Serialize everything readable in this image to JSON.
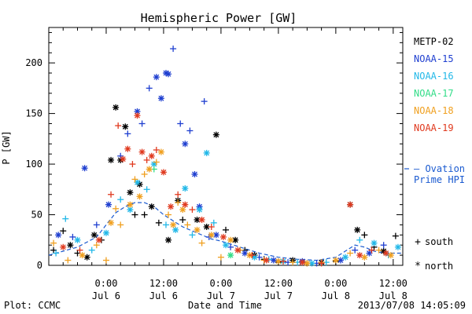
{
  "chart_data": {
    "type": "scatter",
    "title": "Hemispheric Power [GW]",
    "xlabel": "Date and Time",
    "ylabel": "P [GW]",
    "ylim": [
      0,
      235
    ],
    "xlim": [
      "2013-07-05 12:00",
      "2013-07-08 14:00"
    ],
    "yticks": [
      0,
      50,
      100,
      150,
      200
    ],
    "xticks": [
      {
        "time": "2013-07-06 00:00",
        "top": "0:00",
        "bottom": "Jul 6"
      },
      {
        "time": "2013-07-06 12:00",
        "top": "12:00",
        "bottom": "Jul 6"
      },
      {
        "time": "2013-07-07 00:00",
        "top": "0:00",
        "bottom": "Jul 7"
      },
      {
        "time": "2013-07-07 12:00",
        "top": "12:00",
        "bottom": "Jul 7"
      },
      {
        "time": "2013-07-08 00:00",
        "top": "0:00",
        "bottom": "Jul 8"
      },
      {
        "time": "2013-07-08 12:00",
        "top": "12:00",
        "bottom": "Jul 8"
      }
    ],
    "grid": false,
    "legend_placement": "right",
    "marker_legend": {
      "south_symbol": "+",
      "south_label": "south",
      "north_symbol": "*",
      "north_label": "north"
    },
    "series": [
      {
        "name": "METP-02",
        "color": "#000000",
        "points": [
          [
            "2013-07-05 13:00",
            15,
            "+"
          ],
          [
            "2013-07-05 15:00",
            34,
            "+"
          ],
          [
            "2013-07-05 16:30",
            20,
            "*"
          ],
          [
            "2013-07-05 18:00",
            12,
            "+"
          ],
          [
            "2013-07-05 20:00",
            8,
            "*"
          ],
          [
            "2013-07-05 21:30",
            30,
            "*"
          ],
          [
            "2013-07-05 23:00",
            25,
            "+"
          ],
          [
            "2013-07-06 01:00",
            104,
            "*"
          ],
          [
            "2013-07-06 02:00",
            156,
            "*"
          ],
          [
            "2013-07-06 03:00",
            104,
            "*"
          ],
          [
            "2013-07-06 04:00",
            137,
            "*"
          ],
          [
            "2013-07-06 05:00",
            72,
            "*"
          ],
          [
            "2013-07-06 06:00",
            50,
            "+"
          ],
          [
            "2013-07-06 07:00",
            80,
            "*"
          ],
          [
            "2013-07-06 08:00",
            50,
            "+"
          ],
          [
            "2013-07-06 09:30",
            58,
            "*"
          ],
          [
            "2013-07-06 11:00",
            42,
            "+"
          ],
          [
            "2013-07-06 13:00",
            25,
            "*"
          ],
          [
            "2013-07-06 15:00",
            64,
            "*"
          ],
          [
            "2013-07-06 16:00",
            45,
            "+"
          ],
          [
            "2013-07-06 19:00",
            45,
            "*"
          ],
          [
            "2013-07-06 21:00",
            38,
            "*"
          ],
          [
            "2013-07-06 23:00",
            129,
            "*"
          ],
          [
            "2013-07-07 01:00",
            35,
            "+"
          ],
          [
            "2013-07-07 03:00",
            25,
            "*"
          ],
          [
            "2013-07-07 05:00",
            15,
            "+"
          ],
          [
            "2013-07-07 07:00",
            10,
            "*"
          ],
          [
            "2013-07-07 09:00",
            6,
            "+"
          ],
          [
            "2013-07-07 12:00",
            3,
            "+"
          ],
          [
            "2013-07-07 15:00",
            5,
            "*"
          ],
          [
            "2013-07-07 18:00",
            2,
            "+"
          ],
          [
            "2013-07-07 21:00",
            3,
            "*"
          ],
          [
            "2013-07-08 00:00",
            4,
            "+"
          ],
          [
            "2013-07-08 03:00",
            60,
            "*"
          ],
          [
            "2013-07-08 04:30",
            35,
            "*"
          ],
          [
            "2013-07-08 06:00",
            30,
            "+"
          ],
          [
            "2013-07-08 08:00",
            18,
            "+"
          ],
          [
            "2013-07-08 10:00",
            14,
            "*"
          ],
          [
            "2013-07-08 12:30",
            29,
            "+"
          ]
        ]
      },
      {
        "name": "NOAA-15",
        "color": "#1f3fd0",
        "points": [
          [
            "2013-07-05 14:00",
            30,
            "*"
          ],
          [
            "2013-07-05 17:00",
            28,
            "+"
          ],
          [
            "2013-07-05 19:30",
            96,
            "*"
          ],
          [
            "2013-07-05 22:00",
            40,
            "+"
          ],
          [
            "2013-07-06 00:30",
            60,
            "*"
          ],
          [
            "2013-07-06 03:00",
            108,
            "+"
          ],
          [
            "2013-07-06 04:30",
            130,
            "+"
          ],
          [
            "2013-07-06 06:30",
            152,
            "*"
          ],
          [
            "2013-07-06 07:30",
            140,
            "+"
          ],
          [
            "2013-07-06 09:00",
            175,
            "+"
          ],
          [
            "2013-07-06 10:30",
            186,
            "*"
          ],
          [
            "2013-07-06 11:30",
            165,
            "*"
          ],
          [
            "2013-07-06 12:30",
            190,
            "*"
          ],
          [
            "2013-07-06 13:00",
            189,
            "*"
          ],
          [
            "2013-07-06 14:00",
            214,
            "+"
          ],
          [
            "2013-07-06 15:30",
            140,
            "+"
          ],
          [
            "2013-07-06 16:30",
            120,
            "*"
          ],
          [
            "2013-07-06 17:30",
            133,
            "+"
          ],
          [
            "2013-07-06 18:30",
            90,
            "*"
          ],
          [
            "2013-07-06 19:30",
            58,
            "*"
          ],
          [
            "2013-07-06 20:30",
            162,
            "+"
          ],
          [
            "2013-07-06 21:30",
            28,
            "+"
          ],
          [
            "2013-07-06 23:00",
            30,
            "*"
          ],
          [
            "2013-07-07 02:00",
            18,
            "+"
          ],
          [
            "2013-07-07 05:00",
            12,
            "*"
          ],
          [
            "2013-07-07 08:00",
            8,
            "+"
          ],
          [
            "2013-07-07 11:00",
            5,
            "*"
          ],
          [
            "2013-07-07 14:00",
            3,
            "+"
          ],
          [
            "2013-07-07 17:00",
            4,
            "*"
          ],
          [
            "2013-07-07 20:00",
            2,
            "+"
          ],
          [
            "2013-07-08 01:00",
            5,
            "*"
          ],
          [
            "2013-07-08 04:00",
            15,
            "+"
          ],
          [
            "2013-07-08 07:00",
            12,
            "*"
          ],
          [
            "2013-07-08 10:00",
            20,
            "+"
          ]
        ]
      },
      {
        "name": "NOAA-16",
        "color": "#22b8e8",
        "points": [
          [
            "2013-07-05 13:30",
            12,
            "+"
          ],
          [
            "2013-07-05 15:30",
            46,
            "+"
          ],
          [
            "2013-07-05 18:00",
            25,
            "*"
          ],
          [
            "2013-07-05 21:00",
            15,
            "+"
          ],
          [
            "2013-07-06 00:00",
            32,
            "*"
          ],
          [
            "2013-07-06 03:00",
            65,
            "+"
          ],
          [
            "2013-07-06 05:00",
            55,
            "*"
          ],
          [
            "2013-07-06 06:30",
            82,
            "*"
          ],
          [
            "2013-07-06 08:30",
            75,
            "+"
          ],
          [
            "2013-07-06 10:00",
            100,
            "*"
          ],
          [
            "2013-07-06 12:30",
            40,
            "+"
          ],
          [
            "2013-07-06 14:30",
            35,
            "*"
          ],
          [
            "2013-07-06 16:30",
            76,
            "*"
          ],
          [
            "2013-07-06 18:00",
            30,
            "+"
          ],
          [
            "2013-07-06 19:30",
            55,
            "*"
          ],
          [
            "2013-07-06 21:00",
            111,
            "*"
          ],
          [
            "2013-07-06 22:30",
            42,
            "+"
          ],
          [
            "2013-07-07 01:00",
            20,
            "*"
          ],
          [
            "2013-07-07 04:00",
            15,
            "+"
          ],
          [
            "2013-07-07 07:00",
            8,
            "*"
          ],
          [
            "2013-07-07 10:00",
            6,
            "+"
          ],
          [
            "2013-07-07 13:00",
            4,
            "*"
          ],
          [
            "2013-07-07 16:00",
            3,
            "+"
          ],
          [
            "2013-07-07 19:00",
            2,
            "*"
          ],
          [
            "2013-07-07 22:00",
            3,
            "+"
          ],
          [
            "2013-07-08 02:00",
            8,
            "*"
          ],
          [
            "2013-07-08 05:00",
            25,
            "+"
          ],
          [
            "2013-07-08 08:00",
            22,
            "*"
          ],
          [
            "2013-07-08 11:00",
            10,
            "+"
          ],
          [
            "2013-07-08 13:00",
            18,
            "*"
          ]
        ]
      },
      {
        "name": "NOAA-17",
        "color": "#33dd88",
        "points": [
          [
            "2013-07-06 10:00",
            95,
            "+"
          ],
          [
            "2013-07-07 02:00",
            10,
            "*"
          ]
        ]
      },
      {
        "name": "NOAA-18",
        "color": "#f0a020",
        "points": [
          [
            "2013-07-05 13:00",
            22,
            "+"
          ],
          [
            "2013-07-05 16:00",
            5,
            "+"
          ],
          [
            "2013-07-05 19:00",
            10,
            "*"
          ],
          [
            "2013-07-05 22:00",
            20,
            "+"
          ],
          [
            "2013-07-06 00:00",
            5,
            "+"
          ],
          [
            "2013-07-06 01:00",
            42,
            "*"
          ],
          [
            "2013-07-06 02:00",
            56,
            "+"
          ],
          [
            "2013-07-06 03:00",
            40,
            "+"
          ],
          [
            "2013-07-06 05:00",
            60,
            "*"
          ],
          [
            "2013-07-06 06:00",
            85,
            "+"
          ],
          [
            "2013-07-06 07:00",
            68,
            "*"
          ],
          [
            "2013-07-06 08:00",
            90,
            "+"
          ],
          [
            "2013-07-06 09:00",
            95,
            "*"
          ],
          [
            "2013-07-06 10:30",
            102,
            "+"
          ],
          [
            "2013-07-06 11:30",
            112,
            "*"
          ],
          [
            "2013-07-06 13:00",
            50,
            "+"
          ],
          [
            "2013-07-06 14:00",
            40,
            "*"
          ],
          [
            "2013-07-06 15:00",
            62,
            "+"
          ],
          [
            "2013-07-06 16:00",
            55,
            "*"
          ],
          [
            "2013-07-06 17:00",
            40,
            "+"
          ],
          [
            "2013-07-06 19:00",
            35,
            "*"
          ],
          [
            "2013-07-06 20:00",
            22,
            "+"
          ],
          [
            "2013-07-06 22:00",
            30,
            "*"
          ],
          [
            "2013-07-07 00:00",
            8,
            "+"
          ],
          [
            "2013-07-07 02:00",
            25,
            "*"
          ],
          [
            "2013-07-07 04:00",
            15,
            "+"
          ],
          [
            "2013-07-07 06:00",
            10,
            "*"
          ],
          [
            "2013-07-07 09:00",
            5,
            "+"
          ],
          [
            "2013-07-07 12:00",
            4,
            "*"
          ],
          [
            "2013-07-07 15:00",
            3,
            "+"
          ],
          [
            "2013-07-07 18:00",
            2,
            "*"
          ],
          [
            "2013-07-07 21:00",
            3,
            "+"
          ],
          [
            "2013-07-08 00:00",
            5,
            "*"
          ],
          [
            "2013-07-08 03:00",
            12,
            "+"
          ],
          [
            "2013-07-08 06:00",
            8,
            "*"
          ],
          [
            "2013-07-08 09:00",
            15,
            "+"
          ],
          [
            "2013-07-08 11:30",
            10,
            "*"
          ]
        ]
      },
      {
        "name": "NOAA-19",
        "color": "#e03a1f",
        "points": [
          [
            "2013-07-05 15:00",
            18,
            "*"
          ],
          [
            "2013-07-05 18:30",
            15,
            "+"
          ],
          [
            "2013-07-05 22:30",
            25,
            "*"
          ],
          [
            "2013-07-06 01:00",
            70,
            "+"
          ],
          [
            "2013-07-06 02:30",
            138,
            "+"
          ],
          [
            "2013-07-06 03:30",
            105,
            "*"
          ],
          [
            "2013-07-06 04:30",
            115,
            "*"
          ],
          [
            "2013-07-06 05:30",
            100,
            "+"
          ],
          [
            "2013-07-06 06:30",
            148,
            "*"
          ],
          [
            "2013-07-06 07:30",
            112,
            "*"
          ],
          [
            "2013-07-06 08:30",
            104,
            "+"
          ],
          [
            "2013-07-06 09:30",
            108,
            "*"
          ],
          [
            "2013-07-06 10:30",
            114,
            "+"
          ],
          [
            "2013-07-06 12:00",
            92,
            "*"
          ],
          [
            "2013-07-06 13:30",
            58,
            "*"
          ],
          [
            "2013-07-06 15:00",
            70,
            "+"
          ],
          [
            "2013-07-06 16:30",
            60,
            "*"
          ],
          [
            "2013-07-06 18:00",
            55,
            "+"
          ],
          [
            "2013-07-06 20:00",
            45,
            "*"
          ],
          [
            "2013-07-06 22:00",
            38,
            "+"
          ],
          [
            "2013-07-07 00:30",
            28,
            "*"
          ],
          [
            "2013-07-07 03:30",
            15,
            "*"
          ],
          [
            "2013-07-07 06:30",
            10,
            "+"
          ],
          [
            "2013-07-07 09:30",
            5,
            "*"
          ],
          [
            "2013-07-07 13:00",
            4,
            "+"
          ],
          [
            "2013-07-07 17:00",
            3,
            "*"
          ],
          [
            "2013-07-07 21:00",
            2,
            "+"
          ],
          [
            "2013-07-08 03:00",
            60,
            "*"
          ],
          [
            "2013-07-08 05:00",
            10,
            "*"
          ],
          [
            "2013-07-08 07:30",
            15,
            "+"
          ],
          [
            "2013-07-08 10:30",
            12,
            "*"
          ]
        ]
      }
    ],
    "model_series": {
      "name": "Ovation Prime HPI",
      "legend_lines": [
        "— Ovation",
        "Prime HPI"
      ],
      "color": "#1a5ad0",
      "style": "dashed",
      "points": [
        [
          "2013-07-05 12:00",
          10
        ],
        [
          "2013-07-05 18:00",
          18
        ],
        [
          "2013-07-05 22:00",
          28
        ],
        [
          "2013-07-06 00:00",
          40
        ],
        [
          "2013-07-06 02:00",
          52
        ],
        [
          "2013-07-06 04:00",
          58
        ],
        [
          "2013-07-06 06:00",
          62
        ],
        [
          "2013-07-06 08:00",
          62
        ],
        [
          "2013-07-06 10:00",
          58
        ],
        [
          "2013-07-06 12:00",
          50
        ],
        [
          "2013-07-06 14:00",
          44
        ],
        [
          "2013-07-06 16:00",
          38
        ],
        [
          "2013-07-06 18:00",
          34
        ],
        [
          "2013-07-06 20:00",
          30
        ],
        [
          "2013-07-06 22:00",
          26
        ],
        [
          "2013-07-07 00:00",
          24
        ],
        [
          "2013-07-07 04:00",
          18
        ],
        [
          "2013-07-07 08:00",
          12
        ],
        [
          "2013-07-07 12:00",
          8
        ],
        [
          "2013-07-07 16:00",
          6
        ],
        [
          "2013-07-07 20:00",
          5
        ],
        [
          "2013-07-08 00:00",
          8
        ],
        [
          "2013-07-08 02:00",
          14
        ],
        [
          "2013-07-08 04:00",
          20
        ],
        [
          "2013-07-08 06:00",
          18
        ],
        [
          "2013-07-08 08:00",
          14
        ],
        [
          "2013-07-08 10:00",
          12
        ],
        [
          "2013-07-08 12:00",
          12
        ],
        [
          "2013-07-08 14:00",
          12
        ]
      ]
    }
  },
  "footer": {
    "left": "Plot: CCMC",
    "center": "Date and Time",
    "right": "2013/07/08 14:05:09"
  }
}
